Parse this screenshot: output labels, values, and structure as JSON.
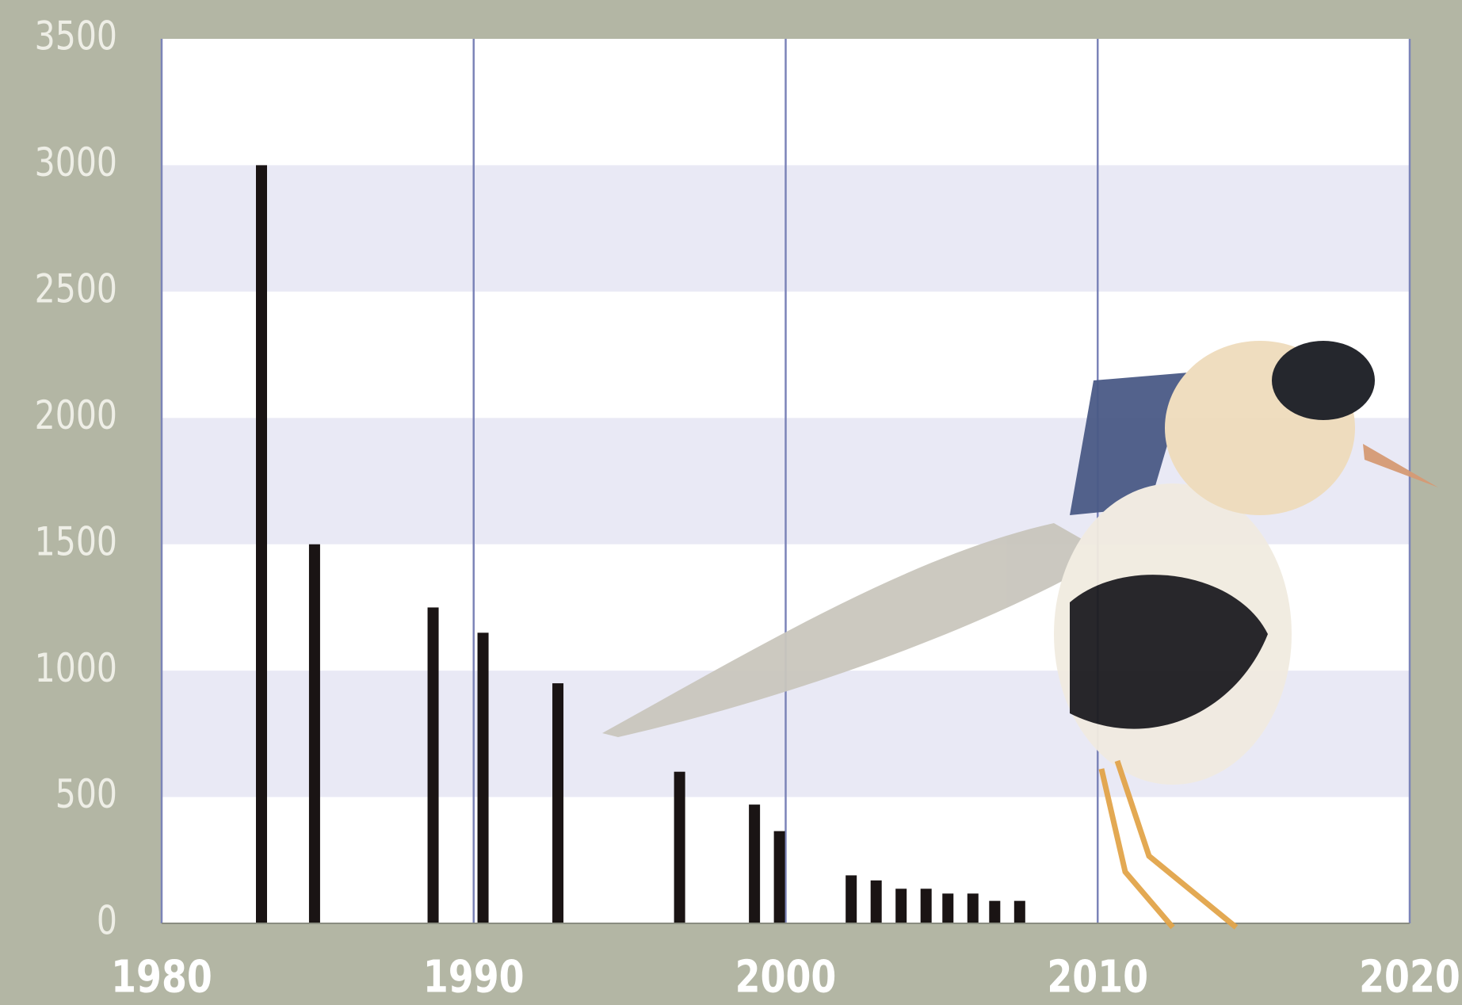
{
  "chart_data": {
    "type": "bar",
    "x": [
      1983.2,
      1984.9,
      1988.7,
      1990.3,
      1992.7,
      1996.6,
      1999.0,
      1999.8,
      2002.1,
      2002.9,
      2003.7,
      2004.5,
      2005.2,
      2006.0,
      2006.7,
      2007.5
    ],
    "values": [
      3000,
      1500,
      1250,
      1150,
      950,
      600,
      470,
      365,
      190,
      170,
      137,
      137,
      118,
      118,
      89,
      89
    ],
    "color": "#1a1414",
    "xlim": [
      1980,
      2020
    ],
    "xticks": [
      1980,
      1990,
      2000,
      2010,
      2020
    ],
    "ylim": [
      0,
      3500
    ],
    "yticks": [
      0,
      500,
      1000,
      1500,
      2000,
      2500,
      3000,
      3500
    ],
    "grid": true
  }
}
